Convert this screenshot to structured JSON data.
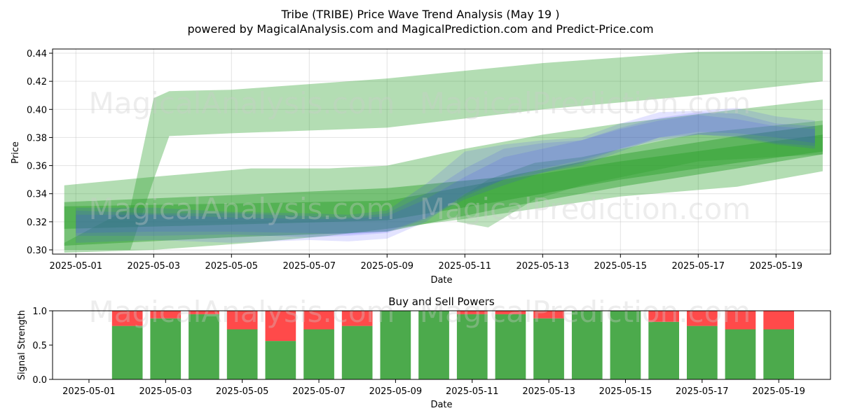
{
  "header": {
    "title": "Tribe (TRIBE) Price Wave Trend Analysis (May 19 )",
    "subtitle": "powered by MagicalAnalysis.com and MagicalPrediction.com and Predict-Price.com"
  },
  "watermarks": [
    "MagicalAnalysis.com",
    "MagicalPrediction.com"
  ],
  "colors": {
    "green_band": "#2ca02c",
    "blue_band": "#3b3bff",
    "buy": "#4caa4c",
    "sell": "#ff4a4a"
  },
  "chart_data": [
    {
      "type": "area",
      "title": "",
      "xlabel": "Date",
      "ylabel": "Price",
      "ylim": [
        0.297,
        0.443
      ],
      "x_tick_labels": [
        "2025-05-01",
        "2025-05-03",
        "2025-05-05",
        "2025-05-07",
        "2025-05-09",
        "2025-05-11",
        "2025-05-13",
        "2025-05-15",
        "2025-05-17",
        "2025-05-19"
      ],
      "y_tick_labels": [
        "0.30",
        "0.32",
        "0.34",
        "0.36",
        "0.38",
        "0.40",
        "0.42",
        "0.44"
      ],
      "x_range_days": [
        -0.6,
        19.4
      ],
      "green_bands": [
        {
          "name": "upper-channel",
          "opacity": 0.36,
          "points": [
            [
              -0.3,
              0.305,
              0.3
            ],
            [
              1.4,
              0.33,
              0.3
            ],
            [
              2.0,
              0.408,
              0.35
            ],
            [
              2.4,
              0.413,
              0.381
            ],
            [
              4,
              0.414,
              0.383
            ],
            [
              8,
              0.422,
              0.387
            ],
            [
              12,
              0.433,
              0.4
            ],
            [
              16,
              0.441,
              0.41
            ],
            [
              19.2,
              0.442,
              0.42
            ]
          ]
        },
        {
          "name": "wide-channel",
          "opacity": 0.36,
          "points": [
            [
              -0.3,
              0.346,
              0.298
            ],
            [
              2,
              0.352,
              0.3
            ],
            [
              4.5,
              0.358,
              0.305
            ],
            [
              6.5,
              0.358,
              0.31
            ],
            [
              8,
              0.36,
              0.315
            ],
            [
              10,
              0.372,
              0.322
            ],
            [
              12,
              0.382,
              0.33
            ],
            [
              14,
              0.39,
              0.338
            ],
            [
              17,
              0.4,
              0.345
            ],
            [
              19.2,
              0.407,
              0.356
            ]
          ]
        },
        {
          "name": "mid-channel",
          "opacity": 0.45,
          "points": [
            [
              -0.3,
              0.334,
              0.303
            ],
            [
              4,
              0.339,
              0.309
            ],
            [
              8,
              0.344,
              0.313
            ],
            [
              11,
              0.352,
              0.33
            ],
            [
              14,
              0.368,
              0.345
            ],
            [
              17,
              0.381,
              0.358
            ],
            [
              19.2,
              0.389,
              0.368
            ]
          ]
        },
        {
          "name": "inner-channel",
          "opacity": 0.45,
          "points": [
            [
              -0.3,
              0.331,
              0.315
            ],
            [
              4,
              0.333,
              0.318
            ],
            [
              8,
              0.335,
              0.321
            ],
            [
              11,
              0.35,
              0.335
            ],
            [
              14,
              0.363,
              0.35
            ],
            [
              17,
              0.374,
              0.362
            ],
            [
              19.2,
              0.382,
              0.37
            ]
          ]
        },
        {
          "name": "lower-short-channel",
          "opacity": 0.3,
          "points": [
            [
              9.8,
              0.336,
              0.32
            ],
            [
              10.6,
              0.35,
              0.316
            ],
            [
              11.8,
              0.362,
              0.336
            ],
            [
              13,
              0.366,
              0.346
            ],
            [
              16,
              0.383,
              0.363
            ],
            [
              19.2,
              0.392,
              0.368
            ]
          ]
        }
      ],
      "blue_bands": [
        {
          "name": "wave-1",
          "opacity": 0.14,
          "points": [
            [
              0,
              0.33,
              0.305
            ],
            [
              2,
              0.33,
              0.307
            ],
            [
              4,
              0.327,
              0.305
            ],
            [
              6,
              0.326,
              0.307
            ],
            [
              7,
              0.325,
              0.306
            ],
            [
              8,
              0.328,
              0.308
            ],
            [
              9,
              0.347,
              0.32
            ],
            [
              10,
              0.37,
              0.34
            ],
            [
              11,
              0.375,
              0.35
            ],
            [
              12,
              0.378,
              0.355
            ],
            [
              13,
              0.38,
              0.362
            ],
            [
              14,
              0.39,
              0.372
            ],
            [
              15,
              0.398,
              0.38
            ],
            [
              16,
              0.399,
              0.384
            ],
            [
              17,
              0.401,
              0.383
            ],
            [
              18,
              0.395,
              0.38
            ],
            [
              19,
              0.392,
              0.376
            ]
          ]
        },
        {
          "name": "wave-2",
          "opacity": 0.14,
          "points": [
            [
              0,
              0.328,
              0.31
            ],
            [
              2,
              0.326,
              0.31
            ],
            [
              4,
              0.326,
              0.311
            ],
            [
              6,
              0.324,
              0.309
            ],
            [
              7,
              0.323,
              0.31
            ],
            [
              8,
              0.326,
              0.312
            ],
            [
              9,
              0.34,
              0.322
            ],
            [
              10,
              0.358,
              0.336
            ],
            [
              11,
              0.372,
              0.346
            ],
            [
              12,
              0.376,
              0.355
            ],
            [
              13,
              0.378,
              0.36
            ],
            [
              14,
              0.387,
              0.37
            ],
            [
              15,
              0.394,
              0.38
            ],
            [
              16,
              0.398,
              0.382
            ],
            [
              17,
              0.397,
              0.381
            ],
            [
              18,
              0.39,
              0.376
            ],
            [
              19,
              0.388,
              0.374
            ]
          ]
        },
        {
          "name": "wave-3",
          "opacity": 0.14,
          "points": [
            [
              0,
              0.325,
              0.312
            ],
            [
              2,
              0.325,
              0.313
            ],
            [
              4,
              0.323,
              0.313
            ],
            [
              6,
              0.322,
              0.312
            ],
            [
              7,
              0.322,
              0.311
            ],
            [
              8,
              0.324,
              0.313
            ],
            [
              9,
              0.336,
              0.323
            ],
            [
              10,
              0.352,
              0.338
            ],
            [
              11,
              0.366,
              0.35
            ],
            [
              12,
              0.372,
              0.358
            ],
            [
              13,
              0.378,
              0.364
            ],
            [
              14,
              0.386,
              0.372
            ],
            [
              15,
              0.392,
              0.378
            ],
            [
              16,
              0.396,
              0.382
            ],
            [
              17,
              0.393,
              0.38
            ],
            [
              18,
              0.388,
              0.375
            ],
            [
              19,
              0.386,
              0.372
            ]
          ]
        }
      ]
    },
    {
      "type": "bar",
      "title": "Buy and Sell Powers",
      "xlabel": "Date",
      "ylabel": "Signal Strength",
      "ylim": [
        0,
        1.0
      ],
      "y_tick_labels": [
        "0.0",
        "0.5",
        "1.0"
      ],
      "x_tick_labels": [
        "2025-05-01",
        "2025-05-03",
        "2025-05-05",
        "2025-05-07",
        "2025-05-09",
        "2025-05-11",
        "2025-05-13",
        "2025-05-15",
        "2025-05-17",
        "2025-05-19"
      ],
      "x_range_days": [
        -0.95,
        19.35
      ],
      "categories": [
        "2025-05-02",
        "2025-05-03",
        "2025-05-04",
        "2025-05-05",
        "2025-05-06",
        "2025-05-07",
        "2025-05-08",
        "2025-05-09",
        "2025-05-10",
        "2025-05-11",
        "2025-05-12",
        "2025-05-13",
        "2025-05-14",
        "2025-05-15",
        "2025-05-16",
        "2025-05-17",
        "2025-05-18",
        "2025-05-19"
      ],
      "series": [
        {
          "name": "Buy",
          "values": [
            0.78,
            0.89,
            0.95,
            0.73,
            0.56,
            0.73,
            0.78,
            1.0,
            1.0,
            0.95,
            0.95,
            0.89,
            1.0,
            1.0,
            0.84,
            0.78,
            0.73,
            0.73
          ]
        },
        {
          "name": "Sell",
          "values": [
            0.22,
            0.11,
            0.05,
            0.27,
            0.44,
            0.27,
            0.22,
            0.0,
            0.0,
            0.05,
            0.05,
            0.11,
            0.0,
            0.0,
            0.16,
            0.22,
            0.27,
            0.27
          ]
        }
      ]
    }
  ]
}
